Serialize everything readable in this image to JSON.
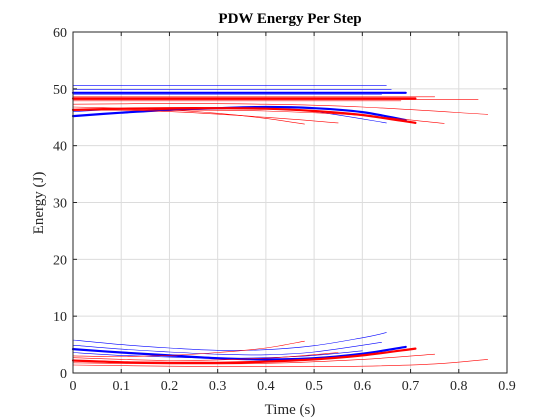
{
  "chart_data": {
    "type": "line",
    "title": "PDW Energy Per Step",
    "xlabel": "Time (s)",
    "ylabel": "Energy (J)",
    "xlim": [
      0,
      0.9
    ],
    "ylim": [
      0,
      60
    ],
    "xticks": [
      0,
      0.1,
      0.2,
      0.3,
      0.4,
      0.5,
      0.6,
      0.7,
      0.8,
      0.9
    ],
    "xtick_labels": [
      "0",
      "0.1",
      "0.2",
      "0.3",
      "0.4",
      "0.5",
      "0.6",
      "0.7",
      "0.8",
      "0.9"
    ],
    "yticks": [
      0,
      10,
      20,
      30,
      40,
      50,
      60
    ],
    "ytick_labels": [
      "0",
      "10",
      "20",
      "30",
      "40",
      "50",
      "60"
    ],
    "grid": true,
    "legend": false,
    "colors": {
      "blue": "#0000ff",
      "red": "#ff0000",
      "axes": "#262626",
      "grid": "#dcdcdc"
    },
    "series": [
      {
        "color": "#0000ff",
        "width": 2.2,
        "x": [
          0,
          0.69
        ],
        "y": [
          49.3,
          49.3
        ]
      },
      {
        "color": "#0000ff",
        "width": 0.6,
        "x": [
          0,
          0.65
        ],
        "y": [
          50.6,
          50.6
        ]
      },
      {
        "color": "#0000ff",
        "width": 0.6,
        "x": [
          0,
          0.66
        ],
        "y": [
          49.9,
          49.9
        ]
      },
      {
        "color": "#0000ff",
        "width": 0.6,
        "x": [
          0,
          0.64
        ],
        "y": [
          49.0,
          49.0
        ]
      },
      {
        "color": "#ff0000",
        "width": 2.2,
        "x": [
          0,
          0.71
        ],
        "y": [
          48.3,
          48.3
        ]
      },
      {
        "color": "#ff0000",
        "width": 0.6,
        "x": [
          0,
          0.75
        ],
        "y": [
          48.6,
          48.6
        ]
      },
      {
        "color": "#ff0000",
        "width": 0.6,
        "x": [
          0,
          0.84
        ],
        "y": [
          48.1,
          48.1
        ]
      },
      {
        "color": "#ff0000",
        "width": 0.6,
        "x": [
          0,
          0.68
        ],
        "y": [
          47.9,
          47.9
        ]
      },
      {
        "color": "#0000ff",
        "width": 2.2,
        "x": [
          0,
          0.1,
          0.2,
          0.3,
          0.4,
          0.5,
          0.6,
          0.69
        ],
        "y": [
          45.2,
          45.8,
          46.3,
          46.6,
          46.8,
          46.6,
          45.9,
          44.5
        ]
      },
      {
        "color": "#0000ff",
        "width": 0.6,
        "x": [
          0,
          0.1,
          0.2,
          0.3,
          0.4,
          0.5,
          0.65
        ],
        "y": [
          46.0,
          46.4,
          46.6,
          46.7,
          46.6,
          46.0,
          44.0
        ]
      },
      {
        "color": "#ff0000",
        "width": 2.2,
        "x": [
          0,
          0.1,
          0.2,
          0.3,
          0.4,
          0.5,
          0.6,
          0.71
        ],
        "y": [
          46.3,
          46.5,
          46.6,
          46.6,
          46.5,
          46.1,
          45.4,
          44.0
        ]
      },
      {
        "color": "#ff0000",
        "width": 0.6,
        "x": [
          0,
          0.1,
          0.2,
          0.3,
          0.4,
          0.48
        ],
        "y": [
          46.8,
          46.6,
          46.3,
          45.7,
          44.8,
          43.8
        ]
      },
      {
        "color": "#ff0000",
        "width": 0.6,
        "x": [
          0,
          0.2,
          0.4,
          0.6,
          0.77
        ],
        "y": [
          46.2,
          46.3,
          46.1,
          45.3,
          43.9
        ]
      },
      {
        "color": "#ff0000",
        "width": 0.6,
        "x": [
          0,
          0.2,
          0.4,
          0.6,
          0.86
        ],
        "y": [
          47.3,
          47.4,
          47.3,
          46.8,
          45.5
        ]
      },
      {
        "color": "#ff0000",
        "width": 0.6,
        "x": [
          0,
          0.2,
          0.4,
          0.55
        ],
        "y": [
          46.4,
          46.0,
          45.0,
          44.0
        ]
      },
      {
        "color": "#0000ff",
        "width": 2.2,
        "x": [
          0,
          0.1,
          0.2,
          0.3,
          0.4,
          0.5,
          0.6,
          0.69
        ],
        "y": [
          4.2,
          3.6,
          3.1,
          2.6,
          2.4,
          2.6,
          3.4,
          4.6
        ]
      },
      {
        "color": "#0000ff",
        "width": 0.6,
        "x": [
          0,
          0.1,
          0.2,
          0.3,
          0.4,
          0.5,
          0.6,
          0.65
        ],
        "y": [
          5.8,
          5.0,
          4.4,
          4.0,
          4.1,
          4.8,
          6.2,
          7.1
        ]
      },
      {
        "color": "#0000ff",
        "width": 0.6,
        "x": [
          0,
          0.1,
          0.2,
          0.3,
          0.4,
          0.5,
          0.64
        ],
        "y": [
          4.9,
          4.2,
          3.7,
          3.3,
          3.2,
          3.7,
          5.4
        ]
      },
      {
        "color": "#0000ff",
        "width": 0.6,
        "x": [
          0,
          0.1,
          0.2,
          0.3,
          0.4,
          0.5,
          0.6
        ],
        "y": [
          3.6,
          3.1,
          2.8,
          2.6,
          2.7,
          3.1,
          3.9
        ]
      },
      {
        "color": "#ff0000",
        "width": 2.2,
        "x": [
          0,
          0.1,
          0.2,
          0.3,
          0.4,
          0.5,
          0.6,
          0.71
        ],
        "y": [
          2.2,
          1.9,
          1.8,
          1.8,
          2.0,
          2.4,
          3.1,
          4.3
        ]
      },
      {
        "color": "#ff0000",
        "width": 0.6,
        "x": [
          0,
          0.1,
          0.2,
          0.3,
          0.4,
          0.48
        ],
        "y": [
          3.0,
          2.9,
          3.1,
          3.6,
          4.4,
          5.6
        ]
      },
      {
        "color": "#ff0000",
        "width": 0.6,
        "x": [
          0,
          0.2,
          0.4,
          0.6,
          0.75
        ],
        "y": [
          1.8,
          1.6,
          1.7,
          2.4,
          3.3
        ]
      },
      {
        "color": "#ff0000",
        "width": 0.6,
        "x": [
          0,
          0.2,
          0.4,
          0.6,
          0.75,
          0.86
        ],
        "y": [
          1.4,
          1.2,
          1.1,
          1.2,
          1.6,
          2.4
        ]
      },
      {
        "color": "#ff0000",
        "width": 0.6,
        "x": [
          0,
          0.2,
          0.4,
          0.55
        ],
        "y": [
          2.7,
          2.2,
          2.6,
          3.6
        ]
      }
    ]
  }
}
